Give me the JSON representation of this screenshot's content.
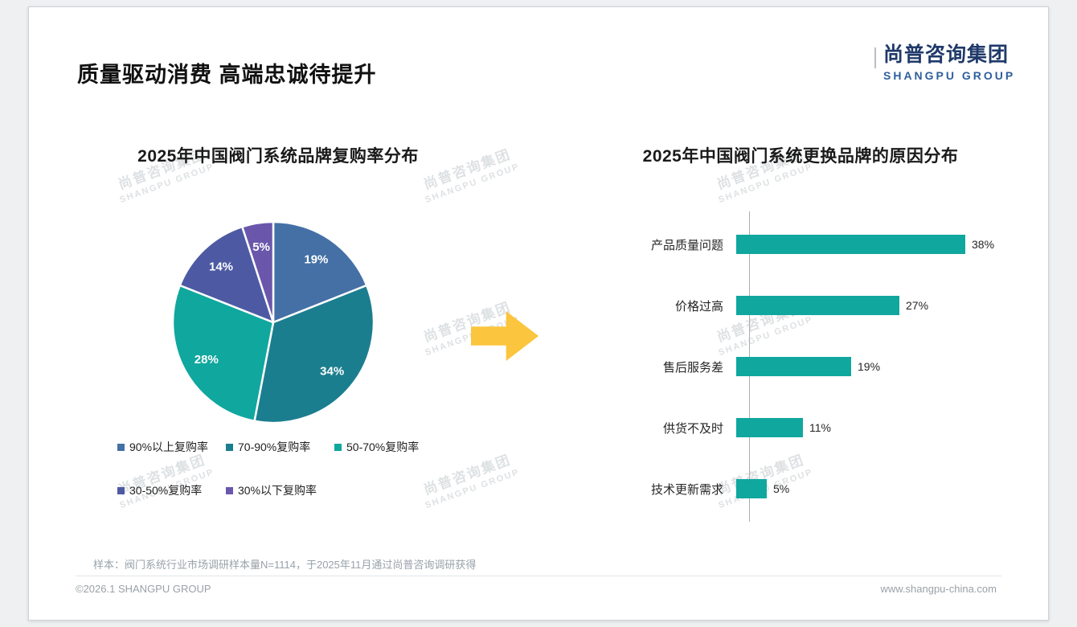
{
  "slide": {
    "title": "质量驱动消费 高端忠诚待提升",
    "logo": {
      "cn": "尚普咨询集团",
      "en": "SHANGPU GROUP"
    },
    "watermark": {
      "cn": "尚普咨询集团",
      "en": "SHANGPU GROUP"
    },
    "footnote": "样本：阀门系统行业市场调研样本量N=1114，于2025年11月通过尚普咨询调研获得",
    "footer": {
      "left": "©2026.1 SHANGPU GROUP",
      "right": "www.shangpu-china.com"
    }
  },
  "colors": {
    "accent_teal": "#10a79f",
    "arrow_yellow": "#fbc53e",
    "logo_navy": "#20396a",
    "logo_blue": "#2f5f9e"
  },
  "chart_data": [
    {
      "type": "pie",
      "title": "2025年中国阀门系统品牌复购率分布",
      "labels": [
        "90%以上复购率",
        "70-90%复购率",
        "50-70%复购率",
        "30-50%复购率",
        "30%以下复购率"
      ],
      "values": [
        19,
        34,
        28,
        14,
        5
      ],
      "value_labels": [
        "19%",
        "34%",
        "28%",
        "14%",
        "5%"
      ],
      "colors": [
        "#4470a6",
        "#1b7e8f",
        "#10a79f",
        "#4d5aa3",
        "#6a57ab"
      ],
      "start_angle_deg": -90,
      "direction": "clockwise",
      "legend_position": "bottom"
    },
    {
      "type": "bar",
      "orientation": "horizontal",
      "title": "2025年中国阀门系统更换品牌的原因分布",
      "categories": [
        "产品质量问题",
        "价格过高",
        "售后服务差",
        "供货不及时",
        "技术更新需求"
      ],
      "values": [
        38,
        27,
        19,
        11,
        5
      ],
      "value_labels": [
        "38%",
        "27%",
        "19%",
        "11%",
        "5%"
      ],
      "bar_color": "#10a79f",
      "xlim": [
        0,
        40
      ],
      "grid": false,
      "legend_position": "none"
    }
  ]
}
